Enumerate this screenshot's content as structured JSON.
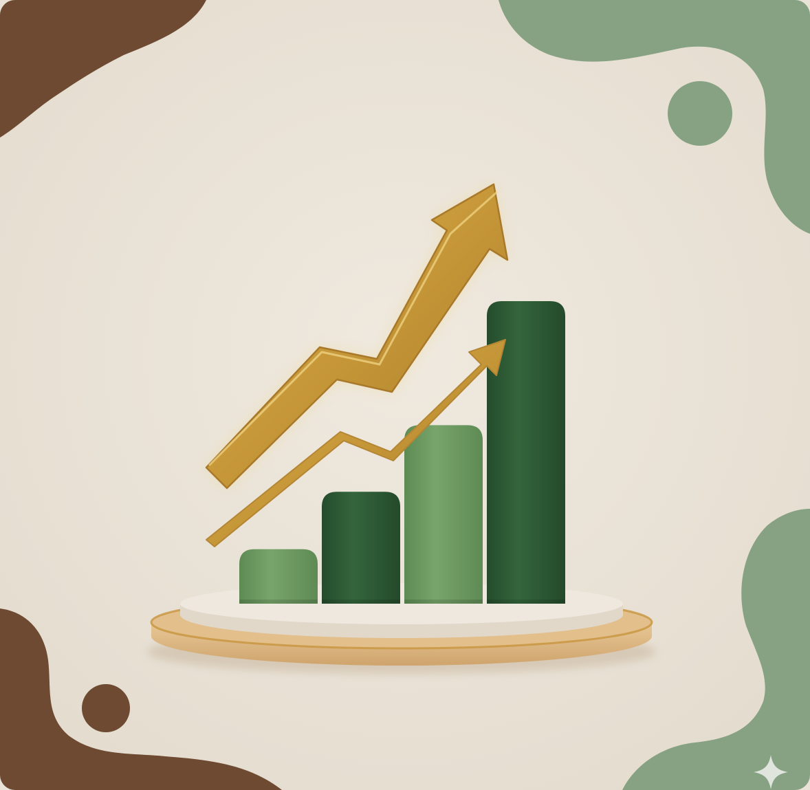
{
  "scene": {
    "background": "#e9e2d6",
    "blob_brown": "#6d4a31",
    "blob_green": "#86a282",
    "bar_light_green": "#6f9a63",
    "bar_dark_green": "#2f5e37",
    "arrow_gold": "#c79a3c",
    "platform_top": "#ede5da",
    "platform_base": "#dcb683",
    "sparkle_color": "#dfe5dd"
  },
  "bars": [
    {
      "name": "bar-1",
      "level": 0.18,
      "tone": "light"
    },
    {
      "name": "bar-2",
      "level": 0.37,
      "tone": "dark"
    },
    {
      "name": "bar-3",
      "level": 0.59,
      "tone": "light"
    },
    {
      "name": "bar-4",
      "level": 1.0,
      "tone": "dark"
    }
  ]
}
